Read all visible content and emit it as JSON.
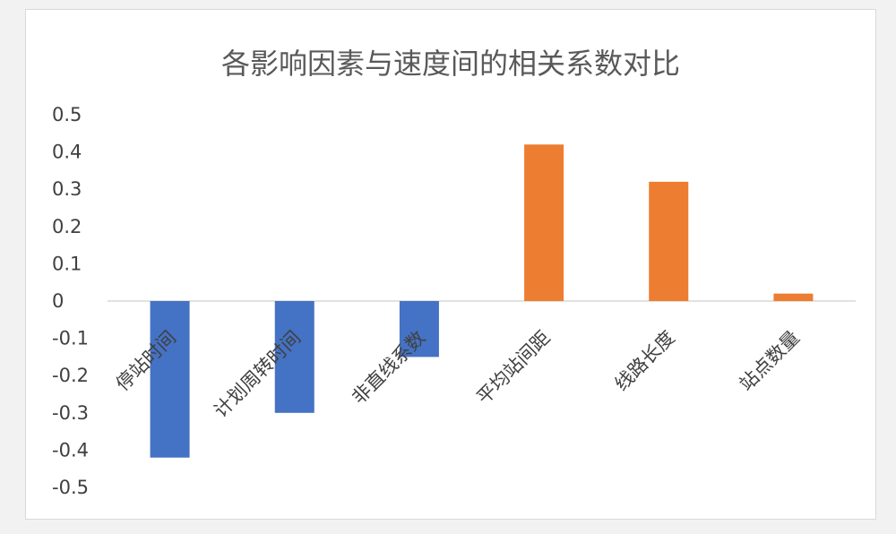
{
  "chart_data": {
    "type": "bar",
    "title": "各影响因素与速度间的相关系数对比",
    "categories": [
      "停站时间",
      "计划周转时间",
      "非直线系数",
      "平均站间距",
      "线路长度",
      "站点数量"
    ],
    "values": [
      -0.42,
      -0.3,
      -0.15,
      0.42,
      0.32,
      0.02
    ],
    "ylim": [
      -0.5,
      0.5
    ],
    "yticks": [
      "0.5",
      "0.4",
      "0.3",
      "0.2",
      "0.1",
      "0",
      "-0.1",
      "-0.2",
      "-0.3",
      "-0.4",
      "-0.5"
    ],
    "xlabel": "",
    "ylabel": "",
    "grid": false,
    "colors": {
      "negative": "#4472c4",
      "positive": "#ed7d31",
      "axis": "#d9d9d9"
    }
  }
}
